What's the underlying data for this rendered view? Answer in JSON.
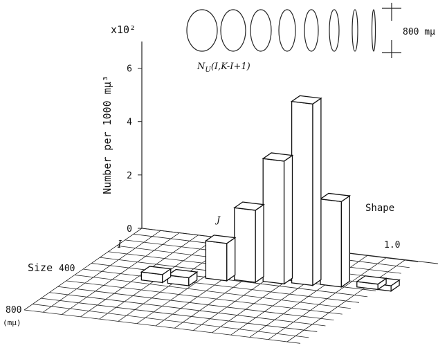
{
  "chart_data": {
    "type": "bar3d",
    "y_multiplier": "x10²",
    "y_label": "Number per 1000 mμ³",
    "yticks": [
      0,
      2,
      4,
      6
    ],
    "ylim": [
      0,
      7
    ],
    "annotation": {
      "main": "N",
      "sub": "U",
      "args": "(I,K-I+1)"
    },
    "j_label": "J",
    "i_label": "I",
    "size_label": "Size",
    "size_ticks": [
      "400",
      "800"
    ],
    "size_unit": "(mμ)",
    "shape_label": "Shape",
    "shape_tick": "1.0",
    "scale_label": "800 mμ",
    "values": [
      0.2,
      0.2,
      3.2,
      6.8,
      4.6,
      2.7,
      1.4,
      0.3,
      0.3
    ]
  }
}
